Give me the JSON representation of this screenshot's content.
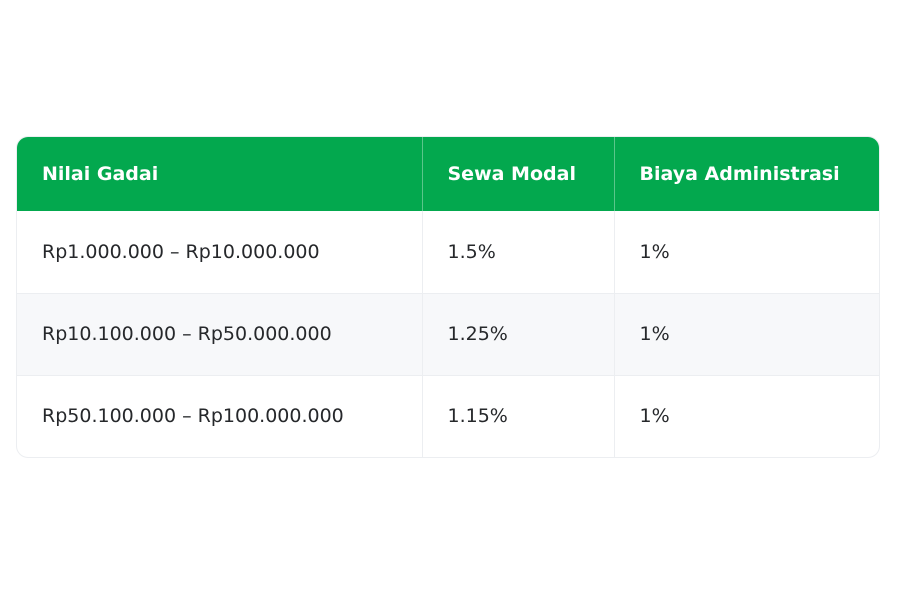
{
  "colors": {
    "header_bg": "#03a84e",
    "header_text": "#ffffff",
    "row_alt_bg": "#f7f8fa",
    "text": "#26282b"
  },
  "table": {
    "headers": [
      "Nilai Gadai",
      "Sewa Modal",
      "Biaya Administrasi"
    ],
    "rows": [
      [
        "Rp1.000.000 – Rp10.000.000",
        "1.5%",
        "1%"
      ],
      [
        "Rp10.100.000 – Rp50.000.000",
        "1.25%",
        "1%"
      ],
      [
        "Rp50.100.000 – Rp100.000.000",
        "1.15%",
        "1%"
      ]
    ]
  }
}
